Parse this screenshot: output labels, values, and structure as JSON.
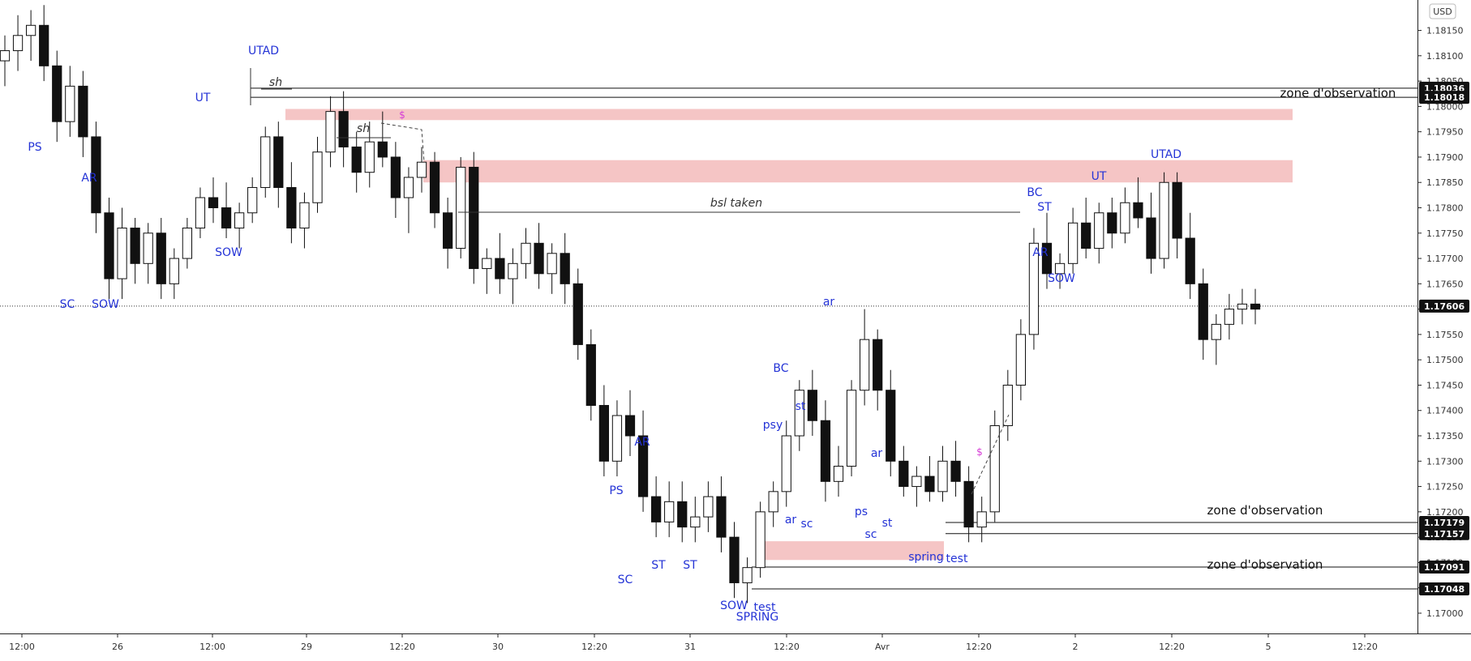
{
  "currency_badge": "USD",
  "chart_data": {
    "type": "candlestick",
    "ylim": [
      1.1696,
      1.1821
    ],
    "x_ticks": [
      "12:00",
      "26",
      "12:00",
      "29",
      "12:20",
      "30",
      "12:20",
      "31",
      "12:20",
      "Avr",
      "12:20",
      "2",
      "12:20",
      "5",
      "12:20"
    ],
    "y_ticks": [
      "1.17000",
      "1.17050",
      "1.17100",
      "1.17150",
      "1.17200",
      "1.17250",
      "1.17300",
      "1.17350",
      "1.17400",
      "1.17450",
      "1.17500",
      "1.17550",
      "1.17600",
      "1.17650",
      "1.17700",
      "1.17750",
      "1.17800",
      "1.17850",
      "1.17900",
      "1.17950",
      "1.18000",
      "1.18050",
      "1.18100",
      "1.18150"
    ],
    "y_tick_values": [
      1.17,
      1.1705,
      1.171,
      1.1715,
      1.172,
      1.1725,
      1.173,
      1.1735,
      1.174,
      1.1745,
      1.175,
      1.1755,
      1.176,
      1.1765,
      1.177,
      1.1775,
      1.178,
      1.1785,
      1.179,
      1.1795,
      1.18,
      1.1805,
      1.181,
      1.1815
    ],
    "last_price": {
      "label": "1.17606",
      "value": 1.17606
    },
    "levels": [
      {
        "label": "1.18036",
        "value": 1.18036
      },
      {
        "label": "1.18018",
        "value": 1.18018
      },
      {
        "label": "1.17179",
        "value": 1.17179
      },
      {
        "label": "1.17157",
        "value": 1.17157
      },
      {
        "label": "1.17091",
        "value": 1.17091
      },
      {
        "label": "1.17048",
        "value": 1.17048
      }
    ],
    "zones": [
      {
        "y_top": 1.17995,
        "y_bottom": 1.17973
      },
      {
        "y_top": 1.17894,
        "y_bottom": 1.1785
      },
      {
        "y_top": 1.17142,
        "y_bottom": 1.17105
      }
    ],
    "zone_labels": [
      "zone d'observation",
      "zone d'observation",
      "zone d'observation"
    ],
    "annotations": {
      "bsl_taken": "bsl taken",
      "sh": "sh",
      "dollar": "$"
    },
    "wyckoff_labels": [
      "PS",
      "SC",
      "AR",
      "SOW",
      "UT",
      "SOW",
      "UTAD",
      "SC",
      "AR",
      "PS",
      "ST",
      "ST",
      "SOW",
      "SPRING",
      "test",
      "BC",
      "st",
      "psy",
      "ar",
      "ar",
      "sc",
      "ar",
      "ps",
      "sc",
      "st",
      "spring",
      "test",
      "BC",
      "ST",
      "AR",
      "SOW",
      "UT",
      "UTAD"
    ],
    "candles": [
      [
        1.1809,
        1.1814,
        1.1804,
        1.1811
      ],
      [
        1.1811,
        1.1818,
        1.1807,
        1.1814
      ],
      [
        1.1814,
        1.1819,
        1.1809,
        1.1816
      ],
      [
        1.1816,
        1.182,
        1.1805,
        1.1808
      ],
      [
        1.1808,
        1.1811,
        1.1793,
        1.1797
      ],
      [
        1.1797,
        1.1808,
        1.1794,
        1.1804
      ],
      [
        1.1804,
        1.1807,
        1.179,
        1.1794
      ],
      [
        1.1794,
        1.1797,
        1.1775,
        1.1779
      ],
      [
        1.1779,
        1.1782,
        1.1762,
        1.1766
      ],
      [
        1.1766,
        1.178,
        1.1762,
        1.1776
      ],
      [
        1.1776,
        1.1778,
        1.1765,
        1.1769
      ],
      [
        1.1769,
        1.1777,
        1.1765,
        1.1775
      ],
      [
        1.1775,
        1.1778,
        1.1762,
        1.1765
      ],
      [
        1.1765,
        1.1772,
        1.1762,
        1.177
      ],
      [
        1.177,
        1.1778,
        1.1768,
        1.1776
      ],
      [
        1.1776,
        1.1784,
        1.1774,
        1.1782
      ],
      [
        1.1782,
        1.1786,
        1.1777,
        1.178
      ],
      [
        1.178,
        1.1785,
        1.1774,
        1.1776
      ],
      [
        1.1776,
        1.1781,
        1.1772,
        1.1779
      ],
      [
        1.1779,
        1.1786,
        1.1777,
        1.1784
      ],
      [
        1.1784,
        1.1796,
        1.1782,
        1.1794
      ],
      [
        1.1794,
        1.1797,
        1.178,
        1.1784
      ],
      [
        1.1784,
        1.1789,
        1.1773,
        1.1776
      ],
      [
        1.1776,
        1.1783,
        1.1772,
        1.1781
      ],
      [
        1.1781,
        1.1794,
        1.1779,
        1.1791
      ],
      [
        1.1791,
        1.1802,
        1.1788,
        1.1799
      ],
      [
        1.1799,
        1.1803,
        1.1788,
        1.1792
      ],
      [
        1.1792,
        1.1795,
        1.1783,
        1.1787
      ],
      [
        1.1787,
        1.1797,
        1.1784,
        1.1793
      ],
      [
        1.1793,
        1.1799,
        1.1788,
        1.179
      ],
      [
        1.179,
        1.1793,
        1.1778,
        1.1782
      ],
      [
        1.1782,
        1.1788,
        1.1775,
        1.1786
      ],
      [
        1.1786,
        1.1792,
        1.1783,
        1.1789
      ],
      [
        1.1789,
        1.1791,
        1.1776,
        1.1779
      ],
      [
        1.1779,
        1.1782,
        1.1768,
        1.1772
      ],
      [
        1.1772,
        1.179,
        1.177,
        1.1788
      ],
      [
        1.1788,
        1.1791,
        1.1765,
        1.1768
      ],
      [
        1.1768,
        1.1772,
        1.1763,
        1.177
      ],
      [
        1.177,
        1.1775,
        1.1763,
        1.1766
      ],
      [
        1.1766,
        1.1772,
        1.1761,
        1.1769
      ],
      [
        1.1769,
        1.1776,
        1.1766,
        1.1773
      ],
      [
        1.1773,
        1.1777,
        1.1764,
        1.1767
      ],
      [
        1.1767,
        1.1773,
        1.1763,
        1.1771
      ],
      [
        1.1771,
        1.1775,
        1.1761,
        1.1765
      ],
      [
        1.1765,
        1.1768,
        1.175,
        1.1753
      ],
      [
        1.1753,
        1.1756,
        1.1738,
        1.1741
      ],
      [
        1.1741,
        1.1745,
        1.1727,
        1.173
      ],
      [
        1.173,
        1.1742,
        1.1727,
        1.1739
      ],
      [
        1.1739,
        1.1744,
        1.1731,
        1.1735
      ],
      [
        1.1735,
        1.174,
        1.172,
        1.1723
      ],
      [
        1.1723,
        1.1727,
        1.1715,
        1.1718
      ],
      [
        1.1718,
        1.1726,
        1.1715,
        1.1722
      ],
      [
        1.1722,
        1.1726,
        1.1714,
        1.1717
      ],
      [
        1.1717,
        1.1723,
        1.1714,
        1.1719
      ],
      [
        1.1719,
        1.1726,
        1.1716,
        1.1723
      ],
      [
        1.1723,
        1.1727,
        1.1712,
        1.1715
      ],
      [
        1.1715,
        1.1718,
        1.1703,
        1.1706
      ],
      [
        1.1706,
        1.1711,
        1.1702,
        1.1709
      ],
      [
        1.1709,
        1.1722,
        1.1707,
        1.172
      ],
      [
        1.172,
        1.1726,
        1.1717,
        1.1724
      ],
      [
        1.1724,
        1.1738,
        1.1721,
        1.1735
      ],
      [
        1.1735,
        1.1746,
        1.1732,
        1.1744
      ],
      [
        1.1744,
        1.1748,
        1.1735,
        1.1738
      ],
      [
        1.1738,
        1.1742,
        1.1722,
        1.1726
      ],
      [
        1.1726,
        1.1733,
        1.1723,
        1.1729
      ],
      [
        1.1729,
        1.1746,
        1.1727,
        1.1744
      ],
      [
        1.1744,
        1.176,
        1.1741,
        1.1754
      ],
      [
        1.1754,
        1.1756,
        1.174,
        1.1744
      ],
      [
        1.1744,
        1.1748,
        1.1727,
        1.173
      ],
      [
        1.173,
        1.1733,
        1.1723,
        1.1725
      ],
      [
        1.1725,
        1.1729,
        1.1721,
        1.1727
      ],
      [
        1.1727,
        1.1731,
        1.1722,
        1.1724
      ],
      [
        1.1724,
        1.1733,
        1.1722,
        1.173
      ],
      [
        1.173,
        1.1734,
        1.1723,
        1.1726
      ],
      [
        1.1726,
        1.1729,
        1.1714,
        1.1717
      ],
      [
        1.1717,
        1.1723,
        1.1714,
        1.172
      ],
      [
        1.172,
        1.174,
        1.1718,
        1.1737
      ],
      [
        1.1737,
        1.1748,
        1.1734,
        1.1745
      ],
      [
        1.1745,
        1.1758,
        1.1742,
        1.1755
      ],
      [
        1.1755,
        1.1776,
        1.1752,
        1.1773
      ],
      [
        1.1773,
        1.1779,
        1.1764,
        1.1767
      ],
      [
        1.1767,
        1.1771,
        1.1764,
        1.1769
      ],
      [
        1.1769,
        1.178,
        1.1767,
        1.1777
      ],
      [
        1.1777,
        1.1782,
        1.177,
        1.1772
      ],
      [
        1.1772,
        1.1781,
        1.1769,
        1.1779
      ],
      [
        1.1779,
        1.1782,
        1.1772,
        1.1775
      ],
      [
        1.1775,
        1.1784,
        1.1773,
        1.1781
      ],
      [
        1.1781,
        1.1786,
        1.1776,
        1.1778
      ],
      [
        1.1778,
        1.1783,
        1.1767,
        1.177
      ],
      [
        1.177,
        1.1787,
        1.1768,
        1.1785
      ],
      [
        1.1785,
        1.1787,
        1.177,
        1.1774
      ],
      [
        1.1774,
        1.1779,
        1.1762,
        1.1765
      ],
      [
        1.1765,
        1.1768,
        1.175,
        1.1754
      ],
      [
        1.1754,
        1.1759,
        1.1749,
        1.1757
      ],
      [
        1.1757,
        1.1763,
        1.1754,
        1.176
      ],
      [
        1.176,
        1.1764,
        1.1757,
        1.1761
      ],
      [
        1.1761,
        1.1764,
        1.1757,
        1.176
      ]
    ]
  }
}
